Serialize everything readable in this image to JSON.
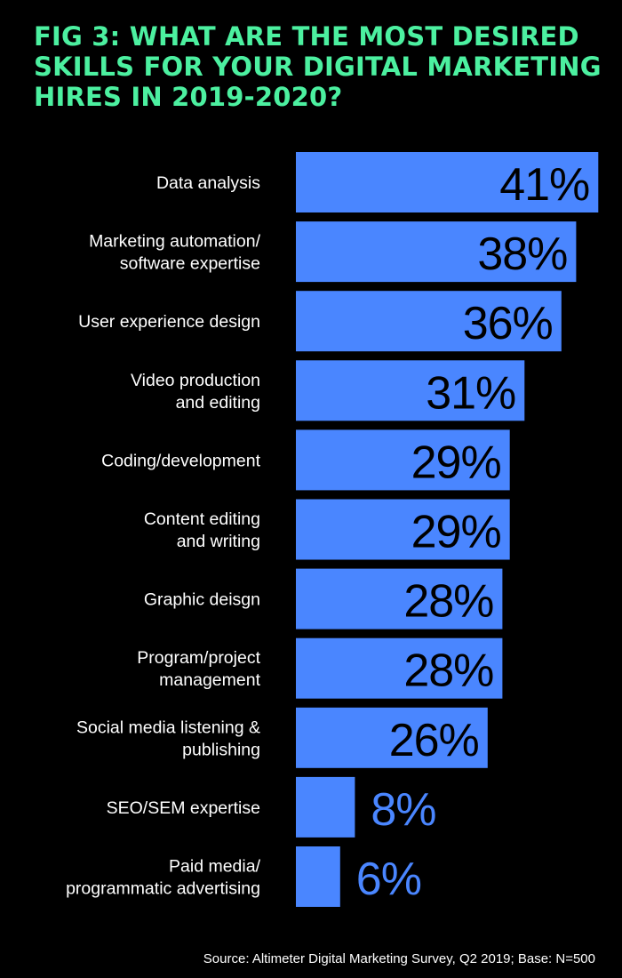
{
  "title_lines": [
    "FIG 3: WHAT ARE THE MOST DESIRED",
    "SKILLS FOR YOUR DIGITAL MARKETING",
    "HIRES IN 2019-2020?"
  ],
  "source": "Source: Altimeter Digital Marketing Survey, Q2 2019; Base: N=500",
  "colors": {
    "background": "#000000",
    "title": "#4cf0a0",
    "bar": "#4a86ff",
    "label": "#ffffff",
    "value_on_bar": "#000000"
  },
  "chart_data": {
    "type": "bar",
    "orientation": "horizontal",
    "categories": [
      [
        "Data analysis"
      ],
      [
        "Marketing automation/",
        "software expertise"
      ],
      [
        "User experience design"
      ],
      [
        "Video production",
        "and editing"
      ],
      [
        "Coding/development"
      ],
      [
        "Content editing",
        "and writing"
      ],
      [
        "Graphic deisgn"
      ],
      [
        "Program/project",
        "management"
      ],
      [
        "Social media listening &",
        "publishing"
      ],
      [
        "SEO/SEM expertise"
      ],
      [
        "Paid media/",
        "programmatic advertising"
      ]
    ],
    "values": [
      41,
      38,
      36,
      31,
      29,
      29,
      28,
      28,
      26,
      8,
      6
    ],
    "value_labels": [
      "41%",
      "38%",
      "36%",
      "31%",
      "29%",
      "29%",
      "28%",
      "28%",
      "26%",
      "8%",
      "6%"
    ],
    "unit": "%",
    "grid": false,
    "legend": "none"
  }
}
